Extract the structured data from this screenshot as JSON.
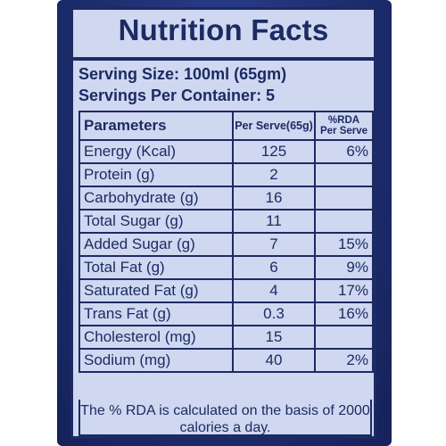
{
  "label": {
    "title": "Nutrition Facts",
    "serving_size": "Serving Size: 100ml (65gm)",
    "servings_per_container": "Servings Per Container: 5",
    "columns": {
      "parameter": "Parameters",
      "per_serve": "Per Serve(65g)",
      "rda_line1": "%RDA",
      "rda_line2": "Per Serve"
    },
    "rows": [
      {
        "name": "Energy (Kcal)",
        "value": "125",
        "rda": "6%"
      },
      {
        "name": "Protein (g)",
        "value": "2",
        "rda": ""
      },
      {
        "name": "Carbohydrate (g)",
        "value": "16",
        "rda": ""
      },
      {
        "name": "Total Sugar (g)",
        "value": "11",
        "rda": ""
      },
      {
        "name": "Added Sugar (g)",
        "value": "7",
        "rda": "15%"
      },
      {
        "name": "Total Fat (g)",
        "value": "6",
        "rda": "9%"
      },
      {
        "name": "Saturated Fat (g)",
        "value": "4",
        "rda": "17%"
      },
      {
        "name": "Trans Fat (g)",
        "value": "0.3",
        "rda": "16%"
      },
      {
        "name": "Cholesterol (mg)",
        "value": "15",
        "rda": ""
      },
      {
        "name": "Sodium (mg)",
        "value": "40",
        "rda": "2%"
      }
    ],
    "footnote": "The % RDA is calculated on the basis of 2000 calories a day."
  },
  "colors": {
    "ink": "#1c2b63",
    "panel": "#cfd8f0",
    "package": "#1d2d6e"
  }
}
